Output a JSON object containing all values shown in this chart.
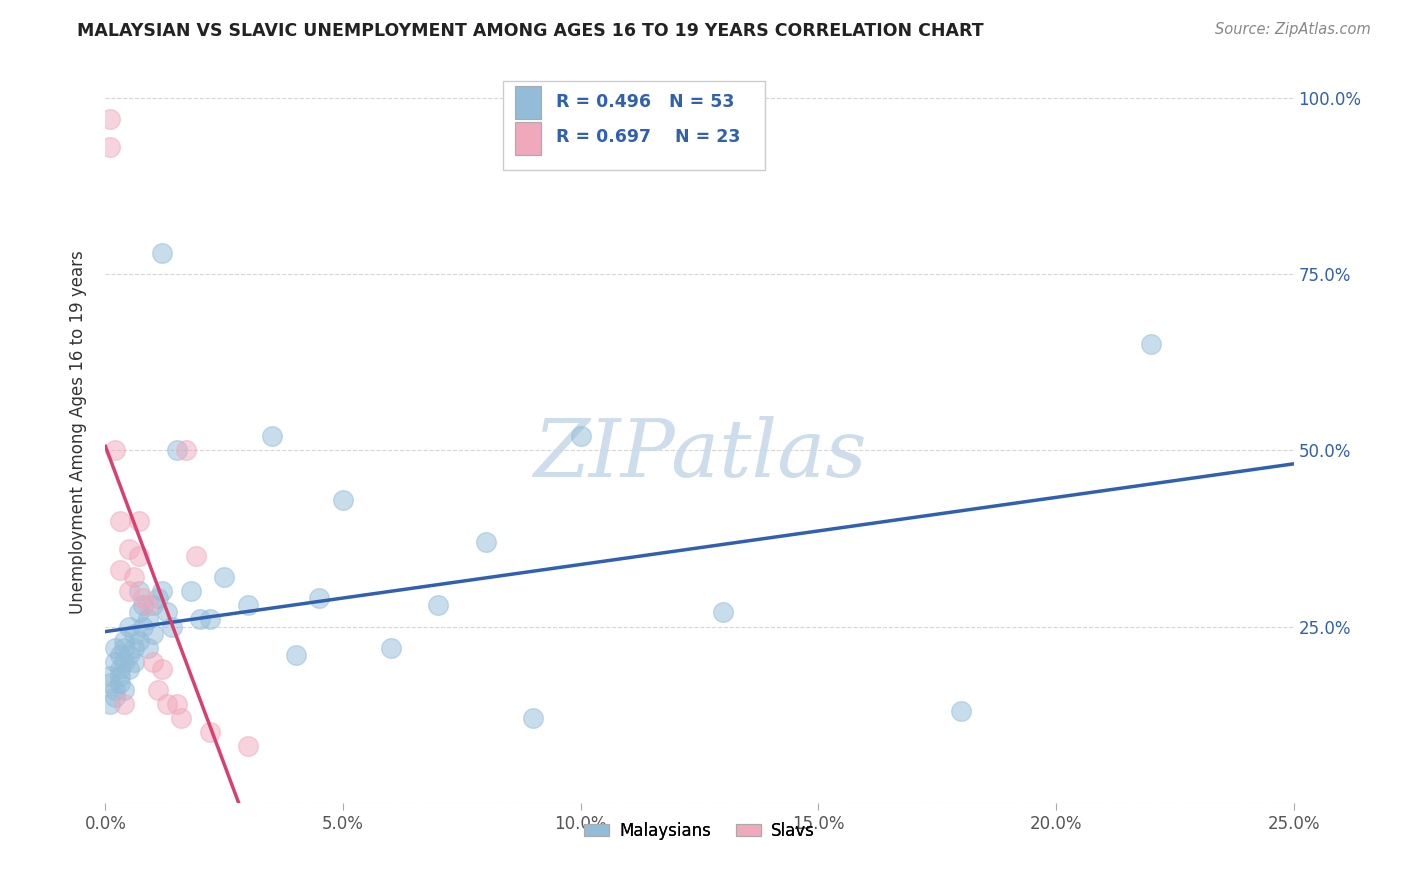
{
  "title": "MALAYSIAN VS SLAVIC UNEMPLOYMENT AMONG AGES 16 TO 19 YEARS CORRELATION CHART",
  "source": "Source: ZipAtlas.com",
  "ylabel": "Unemployment Among Ages 16 to 19 years",
  "xlim": [
    0.0,
    0.25
  ],
  "ylim": [
    0.0,
    1.05
  ],
  "x_tick_positions": [
    0.0,
    0.05,
    0.1,
    0.15,
    0.2,
    0.25
  ],
  "x_tick_labels": [
    "0.0%",
    "5.0%",
    "10.0%",
    "15.0%",
    "20.0%",
    "25.0%"
  ],
  "y_tick_positions": [
    0.0,
    0.25,
    0.5,
    0.75,
    1.0
  ],
  "y_tick_labels": [
    "",
    "25.0%",
    "50.0%",
    "75.0%",
    "100.0%"
  ],
  "r_malaysian": 0.496,
  "n_malaysian": 53,
  "r_slavic": 0.697,
  "n_slavic": 23,
  "legend_labels": [
    "Malaysians",
    "Slavs"
  ],
  "blue_color": "#92bcd8",
  "pink_color": "#f0a8bc",
  "blue_line_color": "#3060b0",
  "pink_line_color": "#d84070",
  "text_color": "#3060b0",
  "title_color": "#222222",
  "source_color": "#888888",
  "watermark": "ZIPatlas",
  "watermark_color": "#c5d8e8",
  "grid_color": "#cccccc",
  "background_color": "#ffffff",
  "malaysian_x": [
    0.001,
    0.001,
    0.001,
    0.002,
    0.002,
    0.002,
    0.002,
    0.003,
    0.003,
    0.003,
    0.003,
    0.004,
    0.004,
    0.004,
    0.004,
    0.005,
    0.005,
    0.005,
    0.006,
    0.006,
    0.006,
    0.007,
    0.007,
    0.007,
    0.008,
    0.008,
    0.009,
    0.009,
    0.01,
    0.01,
    0.011,
    0.012,
    0.012,
    0.013,
    0.014,
    0.015,
    0.018,
    0.02,
    0.022,
    0.025,
    0.03,
    0.035,
    0.04,
    0.045,
    0.05,
    0.06,
    0.07,
    0.08,
    0.09,
    0.1,
    0.13,
    0.18,
    0.22
  ],
  "malaysian_y": [
    0.17,
    0.14,
    0.18,
    0.16,
    0.2,
    0.15,
    0.22,
    0.18,
    0.21,
    0.17,
    0.19,
    0.2,
    0.22,
    0.16,
    0.23,
    0.19,
    0.21,
    0.25,
    0.22,
    0.24,
    0.2,
    0.23,
    0.27,
    0.3,
    0.25,
    0.28,
    0.26,
    0.22,
    0.28,
    0.24,
    0.29,
    0.78,
    0.3,
    0.27,
    0.25,
    0.5,
    0.3,
    0.26,
    0.26,
    0.32,
    0.28,
    0.52,
    0.21,
    0.29,
    0.43,
    0.22,
    0.28,
    0.37,
    0.12,
    0.52,
    0.27,
    0.13,
    0.65
  ],
  "slavic_x": [
    0.001,
    0.001,
    0.002,
    0.003,
    0.003,
    0.004,
    0.005,
    0.005,
    0.006,
    0.007,
    0.007,
    0.008,
    0.009,
    0.01,
    0.011,
    0.012,
    0.013,
    0.015,
    0.016,
    0.017,
    0.019,
    0.022,
    0.03
  ],
  "slavic_y": [
    0.93,
    0.97,
    0.5,
    0.4,
    0.33,
    0.14,
    0.3,
    0.36,
    0.32,
    0.35,
    0.4,
    0.29,
    0.28,
    0.2,
    0.16,
    0.19,
    0.14,
    0.14,
    0.12,
    0.5,
    0.35,
    0.1,
    0.08
  ]
}
